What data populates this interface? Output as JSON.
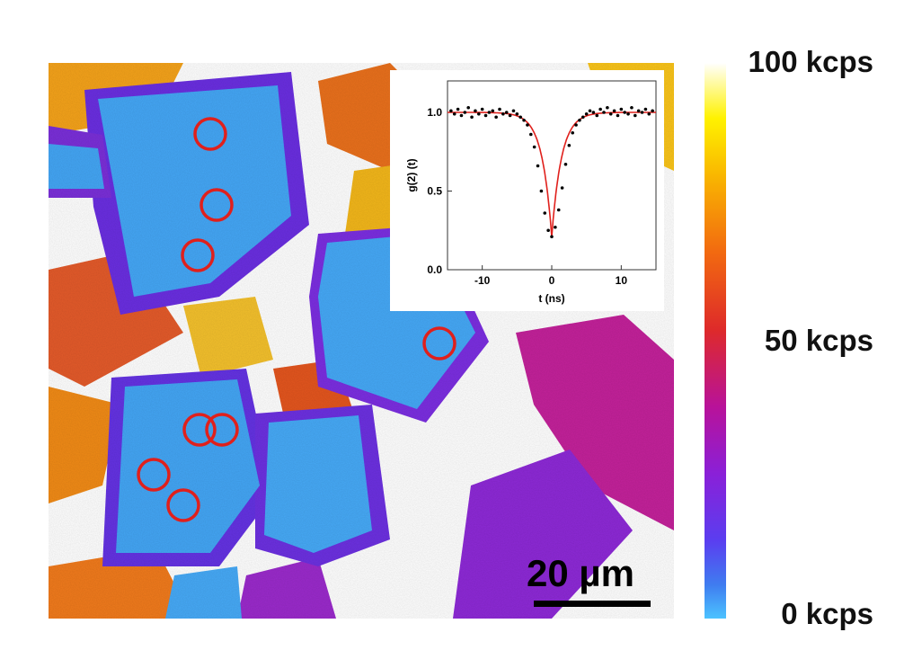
{
  "colorbar": {
    "max_label": "100 kcps",
    "mid_label": "50 kcps",
    "min_label": "0 kcps"
  },
  "scale_bar": {
    "label": "20 µm"
  },
  "inset_chart": {
    "chart_data": {
      "type": "line",
      "xlabel": "t (ns)",
      "ylabel": "g(2) (t)",
      "xlim": [
        -15,
        15
      ],
      "ylim": [
        0,
        1.2
      ],
      "x_ticks": [
        "-10",
        "0",
        "10"
      ],
      "y_ticks": [
        "0.0",
        "0.5",
        "1.0"
      ],
      "series": [
        {
          "style": "scatter",
          "color": "#000000",
          "x": [
            -14.5,
            -14,
            -13.5,
            -13,
            -12.5,
            -12,
            -11.5,
            -11,
            -10.5,
            -10,
            -9.5,
            -9,
            -8.5,
            -8,
            -7.5,
            -7,
            -6.5,
            -6,
            -5.5,
            -5,
            -4.5,
            -4,
            -3.5,
            -3,
            -2.5,
            -2,
            -1.5,
            -1,
            -0.5,
            0,
            0.5,
            1,
            1.5,
            2,
            2.5,
            3,
            3.5,
            4,
            4.5,
            5,
            5.5,
            6,
            6.5,
            7,
            7.5,
            8,
            8.5,
            9,
            9.5,
            10,
            10.5,
            11,
            11.5,
            12,
            12.5,
            13,
            13.5,
            14,
            14.5
          ],
          "y": [
            1.01,
            0.99,
            1.02,
            0.98,
            1.0,
            1.03,
            0.97,
            1.01,
            0.99,
            1.02,
            0.98,
            1.0,
            1.01,
            0.97,
            1.02,
            0.99,
            1.0,
            0.98,
            1.01,
            0.99,
            0.97,
            0.95,
            0.92,
            0.86,
            0.78,
            0.66,
            0.5,
            0.36,
            0.25,
            0.21,
            0.27,
            0.38,
            0.52,
            0.67,
            0.79,
            0.87,
            0.92,
            0.95,
            0.97,
            0.99,
            1.01,
            1.0,
            0.98,
            1.02,
            1.0,
            1.03,
            0.99,
            1.01,
            0.98,
            1.02,
            1.0,
            0.99,
            1.03,
            0.98,
            1.01,
            1.0,
            1.02,
            0.99,
            1.01
          ]
        },
        {
          "style": "line",
          "color": "#e0201c",
          "fit": "g2(t) = 1 - 0.79*exp(-|t|/1.4)"
        }
      ]
    }
  },
  "marked_emitters": 8
}
